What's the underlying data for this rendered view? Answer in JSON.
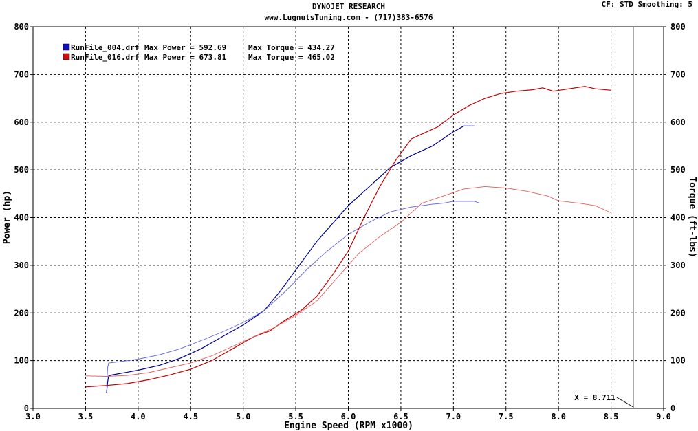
{
  "header": {
    "title": "DYNOJET RESEARCH",
    "subtitle": "www.LugnutsTuning.com - (717)383-6576",
    "settings": "CF: STD  Smoothing: 5"
  },
  "legend": [
    {
      "file": "RunFile_004.drf",
      "power_label": "Max Power = 592.69",
      "torque_label": "Max Torque = 434.27",
      "color": "#1010c0"
    },
    {
      "file": "RunFile_016.drf",
      "power_label": "Max Power = 673.81",
      "torque_label": "Max Torque = 465.02",
      "color": "#d01010"
    }
  ],
  "cursor": {
    "label": "X = 8.711",
    "x": 8.711
  },
  "chart_data": {
    "type": "line",
    "title": "DYNOJET RESEARCH",
    "xlabel": "Engine Speed (RPM x1000)",
    "ylabel": "Power (hp)",
    "y2label": "Torque (ft-lbs)",
    "xlim": [
      3.0,
      9.0
    ],
    "ylim": [
      0,
      800
    ],
    "y2lim": [
      0,
      800
    ],
    "xticks": [
      "3.0",
      "3.5",
      "4.0",
      "4.5",
      "5.0",
      "5.5",
      "6.0",
      "6.5",
      "7.0",
      "7.5",
      "8.0",
      "8.5",
      "9.0"
    ],
    "yticks": [
      "0",
      "100",
      "200",
      "300",
      "400",
      "500",
      "600",
      "700",
      "800"
    ],
    "grid": true,
    "series": [
      {
        "name": "RunFile_004.drf Power",
        "color": "#000090",
        "width": 1.2,
        "x": [
          3.7,
          3.71,
          3.72,
          3.75,
          3.8,
          3.9,
          4.0,
          4.2,
          4.4,
          4.6,
          4.8,
          5.0,
          5.2,
          5.35,
          5.5,
          5.7,
          5.9,
          6.0,
          6.2,
          6.4,
          6.6,
          6.8,
          6.9,
          7.0,
          7.1,
          7.2
        ],
        "y": [
          33,
          55,
          68,
          70,
          72,
          76,
          80,
          90,
          105,
          125,
          150,
          175,
          205,
          245,
          290,
          350,
          400,
          425,
          465,
          505,
          530,
          550,
          565,
          580,
          592,
          592
        ]
      },
      {
        "name": "RunFile_004.drf Torque",
        "color": "#6060e0",
        "width": 0.9,
        "x": [
          3.7,
          3.71,
          3.72,
          3.8,
          4.0,
          4.2,
          4.4,
          4.6,
          4.8,
          5.0,
          5.2,
          5.4,
          5.6,
          5.8,
          6.0,
          6.2,
          6.4,
          6.6,
          6.8,
          6.9,
          7.0,
          7.2,
          7.25
        ],
        "y": [
          45,
          85,
          95,
          97,
          103,
          112,
          125,
          142,
          160,
          180,
          205,
          245,
          290,
          330,
          365,
          390,
          412,
          422,
          428,
          430,
          434,
          434,
          430
        ]
      },
      {
        "name": "RunFile_016.drf Power",
        "color": "#c00000",
        "width": 1.2,
        "x": [
          3.5,
          3.7,
          3.9,
          4.1,
          4.3,
          4.5,
          4.7,
          4.9,
          5.1,
          5.25,
          5.4,
          5.55,
          5.7,
          5.85,
          6.0,
          6.15,
          6.3,
          6.45,
          6.6,
          6.7,
          6.85,
          7.0,
          7.15,
          7.3,
          7.45,
          7.6,
          7.75,
          7.85,
          7.95,
          8.1,
          8.25,
          8.35,
          8.5
        ],
        "y": [
          45,
          48,
          52,
          60,
          70,
          82,
          100,
          125,
          150,
          162,
          185,
          205,
          235,
          280,
          330,
          400,
          465,
          520,
          565,
          575,
          590,
          615,
          635,
          650,
          660,
          665,
          668,
          672,
          665,
          670,
          675,
          670,
          667
        ]
      },
      {
        "name": "RunFile_016.drf Torque",
        "color": "#e06060",
        "width": 0.9,
        "x": [
          3.5,
          3.7,
          3.9,
          4.1,
          4.3,
          4.5,
          4.7,
          4.9,
          5.1,
          5.3,
          5.5,
          5.7,
          5.9,
          6.1,
          6.3,
          6.5,
          6.7,
          6.9,
          7.1,
          7.3,
          7.5,
          7.7,
          7.9,
          8.0,
          8.2,
          8.35,
          8.5
        ],
        "y": [
          68,
          67,
          69,
          75,
          85,
          95,
          110,
          130,
          150,
          170,
          195,
          225,
          275,
          325,
          360,
          390,
          430,
          445,
          460,
          465,
          462,
          455,
          445,
          435,
          430,
          425,
          410
        ]
      }
    ]
  }
}
